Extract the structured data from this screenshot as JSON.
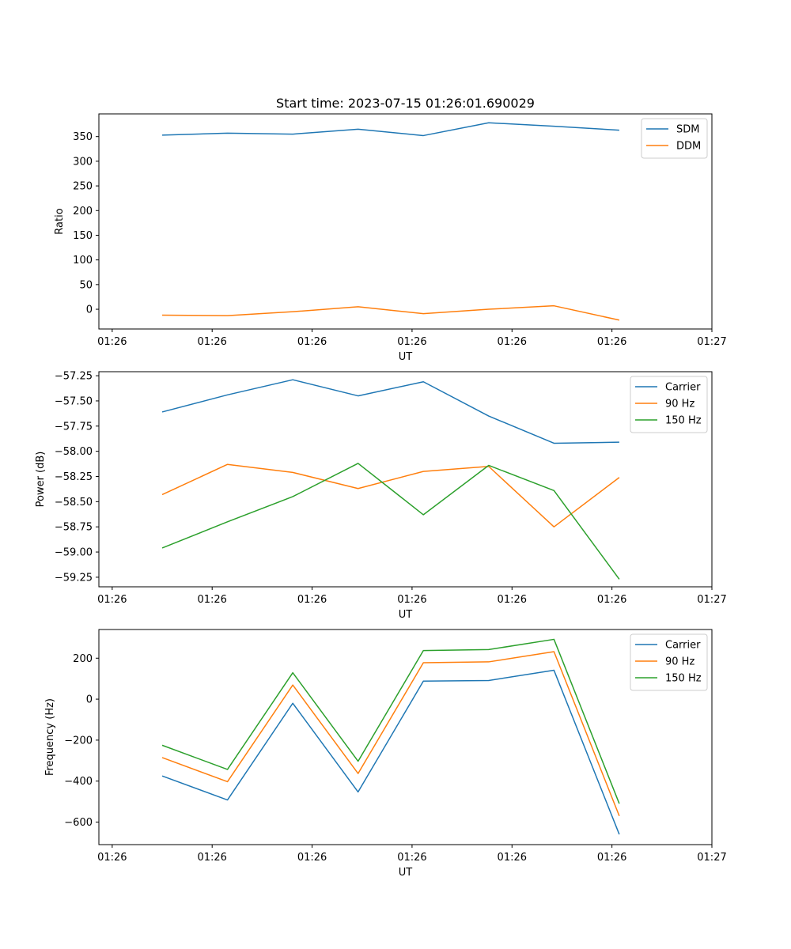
{
  "title": "Start time: 2023-07-15 01:26:01.690029",
  "chart_data": [
    {
      "type": "line",
      "title": "Start time: 2023-07-15 01:26:01.690029",
      "xlabel": "UT",
      "ylabel": "Ratio",
      "xlim": [
        -0.2,
        9.0
      ],
      "ylim": [
        -40,
        396
      ],
      "x": [
        0.75,
        1.73,
        2.71,
        3.69,
        4.67,
        5.65,
        6.63,
        7.61
      ],
      "x_tick_values": [
        0,
        1.5,
        3,
        4.5,
        6,
        7.5,
        9
      ],
      "x_tick_labels": [
        "01:26",
        "01:26",
        "01:26",
        "01:26",
        "01:26",
        "01:26",
        "01:27"
      ],
      "y_ticks": [
        0,
        50,
        100,
        150,
        200,
        250,
        300,
        350
      ],
      "y_tick_labels": [
        "0",
        "50",
        "100",
        "150",
        "200",
        "250",
        "300",
        "350"
      ],
      "legend_position": "top-right",
      "series": [
        {
          "name": "SDM",
          "color": "#1f77b4",
          "values": [
            353,
            357,
            355,
            365,
            352,
            378,
            371,
            363
          ]
        },
        {
          "name": "DDM",
          "color": "#ff7f0e",
          "values": [
            -12,
            -13,
            -5,
            5,
            -9,
            0,
            7,
            -22
          ]
        }
      ]
    },
    {
      "type": "line",
      "xlabel": "UT",
      "ylabel": "Power (dB)",
      "xlim": [
        -0.2,
        9.0
      ],
      "ylim": [
        -59.345,
        -57.21
      ],
      "x": [
        0.75,
        1.73,
        2.71,
        3.69,
        4.67,
        5.65,
        6.63,
        7.61
      ],
      "x_tick_values": [
        0,
        1.5,
        3,
        4.5,
        6,
        7.5,
        9
      ],
      "x_tick_labels": [
        "01:26",
        "01:26",
        "01:26",
        "01:26",
        "01:26",
        "01:26",
        "01:27"
      ],
      "y_ticks": [
        -57.25,
        -57.5,
        -57.75,
        -58.0,
        -58.25,
        -58.5,
        -58.75,
        -59.0,
        -59.25
      ],
      "y_tick_labels": [
        "−57.25",
        "−57.50",
        "−57.75",
        "−58.00",
        "−58.25",
        "−58.50",
        "−58.75",
        "−59.00",
        "−59.25"
      ],
      "legend_position": "top-right",
      "series": [
        {
          "name": "Carrier",
          "color": "#1f77b4",
          "values": [
            -57.61,
            -57.44,
            -57.29,
            -57.45,
            -57.31,
            -57.65,
            -57.92,
            -57.91
          ]
        },
        {
          "name": "90 Hz",
          "color": "#ff7f0e",
          "values": [
            -58.43,
            -58.13,
            -58.21,
            -58.37,
            -58.2,
            -58.15,
            -58.75,
            -58.26
          ]
        },
        {
          "name": "150 Hz",
          "color": "#2ca02c",
          "values": [
            -58.96,
            -58.7,
            -58.45,
            -58.12,
            -58.63,
            -58.14,
            -58.39,
            -59.27
          ]
        }
      ]
    },
    {
      "type": "line",
      "xlabel": "UT",
      "ylabel": "Frequency (Hz)",
      "xlim": [
        -0.2,
        9.0
      ],
      "ylim": [
        -710,
        340
      ],
      "x": [
        0.75,
        1.73,
        2.71,
        3.69,
        4.67,
        5.65,
        6.63,
        7.61
      ],
      "x_tick_values": [
        0,
        1.5,
        3,
        4.5,
        6,
        7.5,
        9
      ],
      "x_tick_labels": [
        "01:26",
        "01:26",
        "01:26",
        "01:26",
        "01:26",
        "01:26",
        "01:27"
      ],
      "y_ticks": [
        200,
        0,
        -200,
        -400,
        -600
      ],
      "y_tick_labels": [
        "200",
        "0",
        "−200",
        "−400",
        "−600"
      ],
      "legend_position": "top-right",
      "series": [
        {
          "name": "Carrier",
          "color": "#1f77b4",
          "values": [
            -375,
            -492,
            -20,
            -453,
            88,
            91,
            141,
            -660
          ]
        },
        {
          "name": "90 Hz",
          "color": "#ff7f0e",
          "values": [
            -285,
            -403,
            69,
            -363,
            178,
            182,
            232,
            -570
          ]
        },
        {
          "name": "150 Hz",
          "color": "#2ca02c",
          "values": [
            -225,
            -343,
            129,
            -303,
            237,
            242,
            292,
            -510
          ]
        }
      ]
    }
  ]
}
